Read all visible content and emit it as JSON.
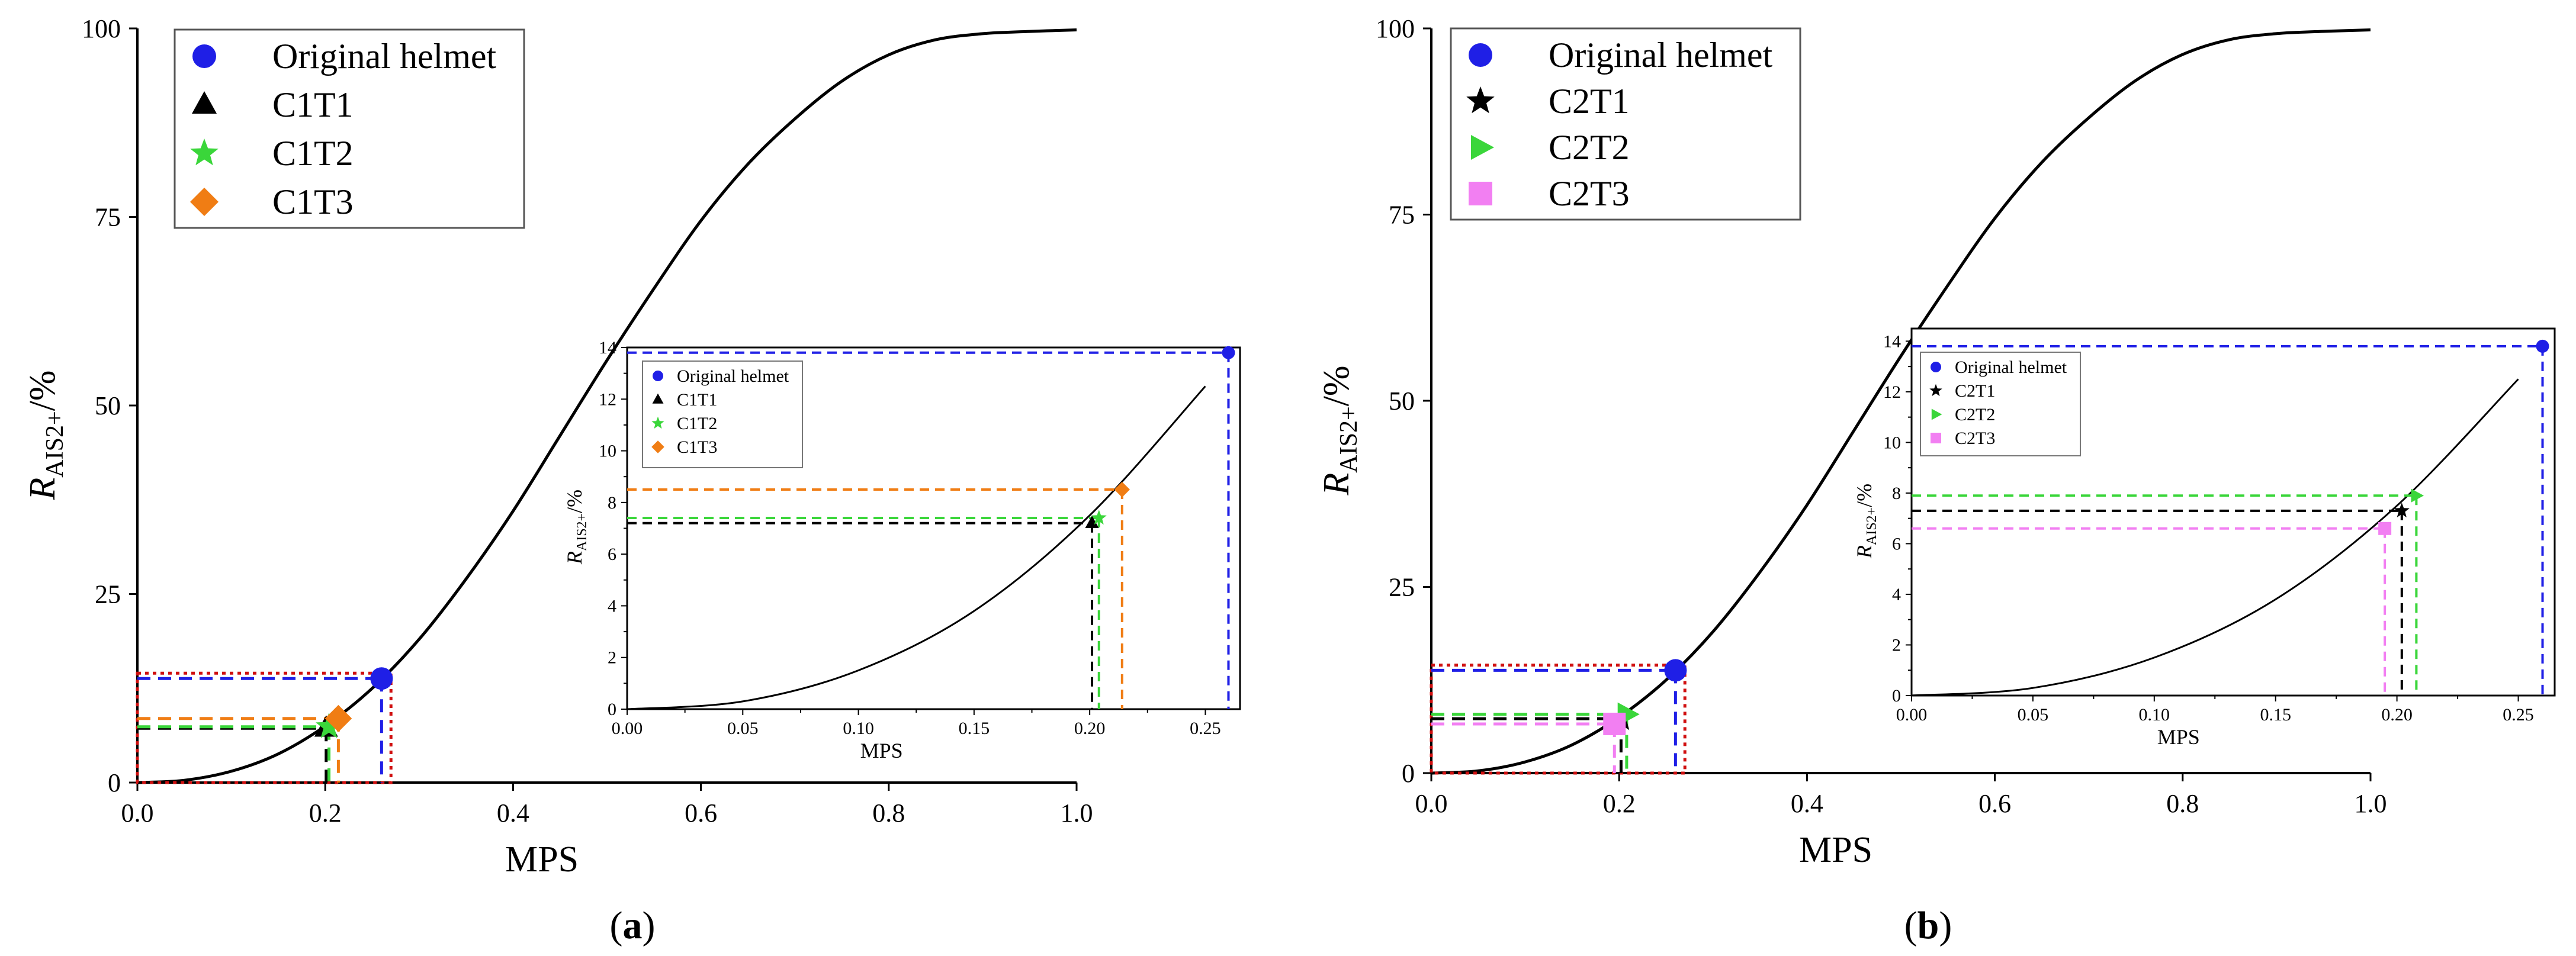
{
  "panel_labels": {
    "a_pre": "(",
    "a": "a",
    "a_post": ")",
    "b_pre": "(",
    "b": "b",
    "b_post": ")"
  },
  "chart_data": [
    {
      "type": "line",
      "panel": "a",
      "xlabel": "MPS",
      "ylabel_main": "R",
      "ylabel_sub": "AIS2+",
      "ylabel_suffix": "/%",
      "xlim": [
        0,
        1.0
      ],
      "ylim": [
        0,
        100
      ],
      "xticks": [
        0.0,
        0.2,
        0.4,
        0.6,
        0.8,
        1.0
      ],
      "xtick_labels": [
        "0.0",
        "0.2",
        "0.4",
        "0.6",
        "0.8",
        "1.0"
      ],
      "yticks": [
        0,
        25,
        50,
        75,
        100
      ],
      "ytick_labels": [
        "0",
        "25",
        "50",
        "75",
        "100"
      ],
      "legend_position": "top-left",
      "zoom_box": {
        "x": [
          0,
          0.27
        ],
        "y": [
          0,
          14.5
        ]
      },
      "curve": {
        "x": [
          0,
          0.05,
          0.1,
          0.15,
          0.2,
          0.25,
          0.3,
          0.35,
          0.4,
          0.45,
          0.5,
          0.55,
          0.6,
          0.65,
          0.7,
          0.75,
          0.8,
          0.85,
          0.9,
          0.95,
          1.0
        ],
        "y": [
          0,
          0.3,
          1.5,
          3.8,
          7.5,
          12.5,
          19,
          27,
          36,
          46,
          56,
          65.5,
          74.5,
          82,
          88,
          93,
          96.5,
          98.5,
          99.3,
          99.6,
          99.8
        ]
      },
      "points": [
        {
          "name": "Original helmet",
          "x": 0.26,
          "y": 13.8,
          "color": "#1f1fe6",
          "marker": "circle"
        },
        {
          "name": "C1T1",
          "x": 0.201,
          "y": 7.2,
          "color": "#000000",
          "marker": "triangle"
        },
        {
          "name": "C1T2",
          "x": 0.204,
          "y": 7.4,
          "color": "#3ad63a",
          "marker": "star"
        },
        {
          "name": "C1T3",
          "x": 0.214,
          "y": 8.5,
          "color": "#f07d14",
          "marker": "diamond"
        }
      ],
      "inset": {
        "xlabel": "MPS",
        "ylabel_main": "R",
        "ylabel_sub": "AIS2+",
        "ylabel_suffix": "/%",
        "xlim": [
          0,
          0.265
        ],
        "ylim": [
          0,
          14
        ],
        "xticks": [
          0.0,
          0.05,
          0.1,
          0.15,
          0.2,
          0.25
        ],
        "xtick_labels": [
          "0.00",
          "0.05",
          "0.10",
          "0.15",
          "0.20",
          "0.25"
        ],
        "yticks": [
          0,
          2,
          4,
          6,
          8,
          10,
          12,
          14
        ],
        "ytick_labels": [
          "0",
          "2",
          "4",
          "6",
          "8",
          "10",
          "12",
          "14"
        ]
      }
    },
    {
      "type": "line",
      "panel": "b",
      "xlabel": "MPS",
      "ylabel_main": "R",
      "ylabel_sub": "AIS2+",
      "ylabel_suffix": "/%",
      "xlim": [
        0,
        1.0
      ],
      "ylim": [
        0,
        100
      ],
      "xticks": [
        0.0,
        0.2,
        0.4,
        0.6,
        0.8,
        1.0
      ],
      "xtick_labels": [
        "0.0",
        "0.2",
        "0.4",
        "0.6",
        "0.8",
        "1.0"
      ],
      "yticks": [
        0,
        25,
        50,
        75,
        100
      ],
      "ytick_labels": [
        "0",
        "25",
        "50",
        "75",
        "100"
      ],
      "legend_position": "top-left",
      "zoom_box": {
        "x": [
          0,
          0.27
        ],
        "y": [
          0,
          14.5
        ]
      },
      "curve": {
        "x": [
          0,
          0.05,
          0.1,
          0.15,
          0.2,
          0.25,
          0.3,
          0.35,
          0.4,
          0.45,
          0.5,
          0.55,
          0.6,
          0.65,
          0.7,
          0.75,
          0.8,
          0.85,
          0.9,
          0.95,
          1.0
        ],
        "y": [
          0,
          0.3,
          1.5,
          3.8,
          7.5,
          12.5,
          19,
          27,
          36,
          46,
          56,
          65.5,
          74.5,
          82,
          88,
          93,
          96.5,
          98.5,
          99.3,
          99.6,
          99.8
        ]
      },
      "points": [
        {
          "name": "Original helmet",
          "x": 0.26,
          "y": 13.8,
          "color": "#1f1fe6",
          "marker": "circle"
        },
        {
          "name": "C2T1",
          "x": 0.202,
          "y": 7.3,
          "color": "#000000",
          "marker": "star"
        },
        {
          "name": "C2T2",
          "x": 0.208,
          "y": 7.9,
          "color": "#3ad63a",
          "marker": "triangle-right"
        },
        {
          "name": "C2T3",
          "x": 0.195,
          "y": 6.6,
          "color": "#f27ff2",
          "marker": "square"
        }
      ],
      "inset": {
        "xlabel": "MPS",
        "ylabel_main": "R",
        "ylabel_sub": "AIS2+",
        "ylabel_suffix": "/%",
        "xlim": [
          0,
          0.265
        ],
        "ylim": [
          0,
          14.5
        ],
        "xticks": [
          0.0,
          0.05,
          0.1,
          0.15,
          0.2,
          0.25
        ],
        "xtick_labels": [
          "0.00",
          "0.05",
          "0.10",
          "0.15",
          "0.20",
          "0.25"
        ],
        "yticks": [
          0,
          2,
          4,
          6,
          8,
          10,
          12,
          14
        ],
        "ytick_labels": [
          "0",
          "2",
          "4",
          "6",
          "8",
          "10",
          "12",
          "14"
        ]
      }
    }
  ]
}
